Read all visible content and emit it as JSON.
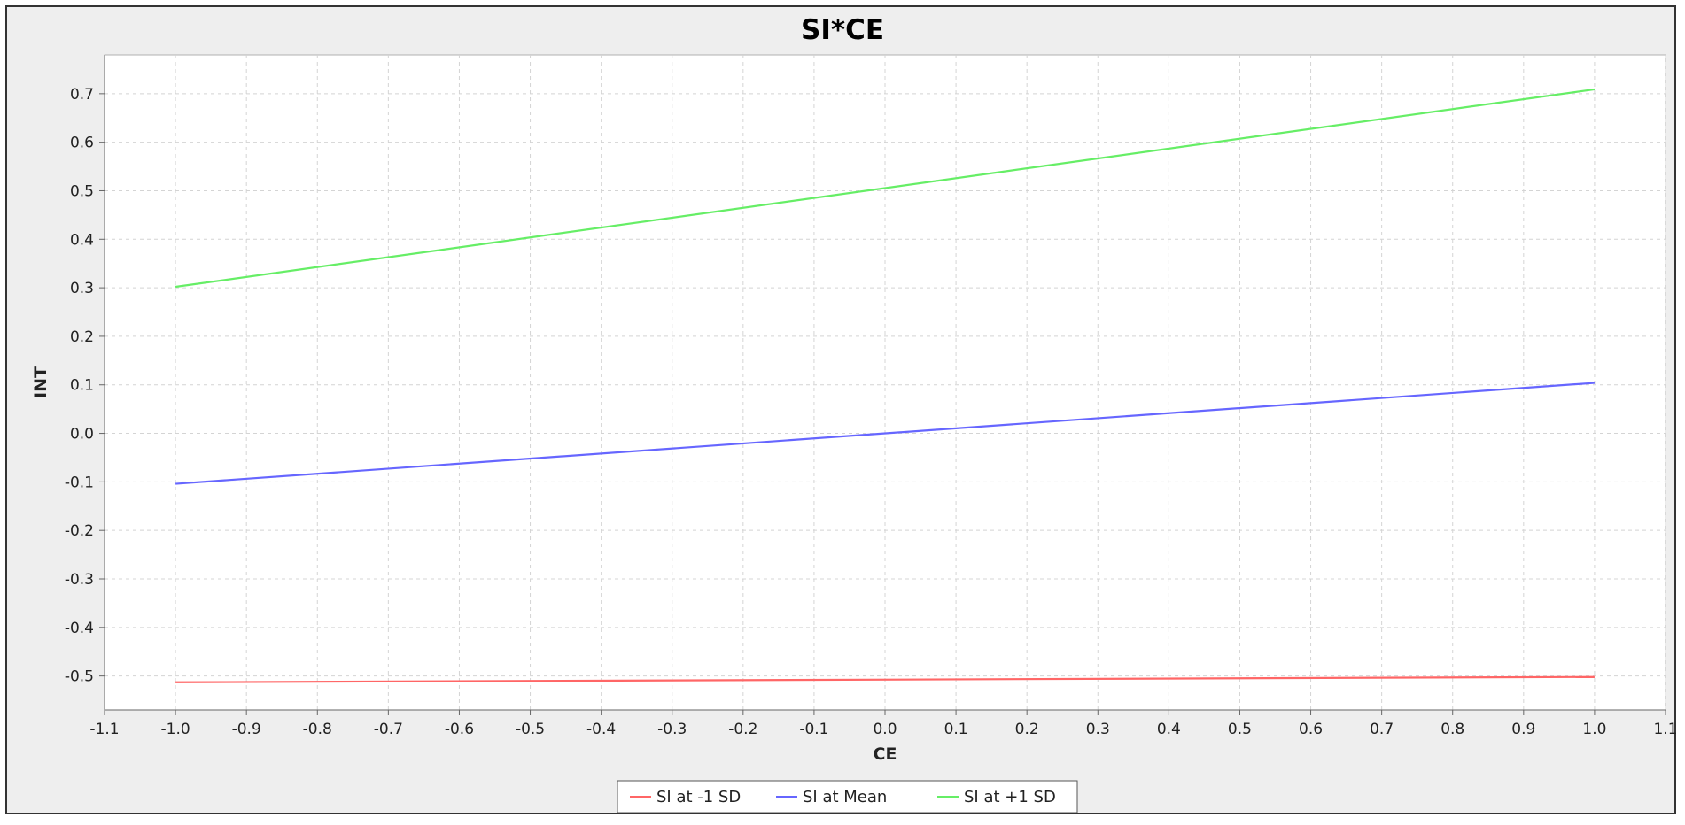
{
  "chart_data": {
    "type": "line",
    "title": "SI*CE",
    "xlabel": "CE",
    "ylabel": "INT",
    "xlim": [
      -1.1,
      1.1
    ],
    "ylim": [
      -0.57,
      0.78
    ],
    "xticks": [
      -1.1,
      -1.0,
      -0.9,
      -0.8,
      -0.7,
      -0.6,
      -0.5,
      -0.4,
      -0.3,
      -0.2,
      -0.1,
      0.0,
      0.1,
      0.2,
      0.3,
      0.4,
      0.5,
      0.6,
      0.7,
      0.8,
      0.9,
      1.0,
      1.1
    ],
    "yticks": [
      -0.5,
      -0.4,
      -0.3,
      -0.2,
      -0.1,
      0.0,
      0.1,
      0.2,
      0.3,
      0.4,
      0.5,
      0.6,
      0.7
    ],
    "grid": true,
    "legend_position": "bottom-center",
    "series": [
      {
        "name": "SI at -1 SD",
        "color": "#ff6666",
        "x": [
          -1.0,
          1.0
        ],
        "y": [
          -0.513,
          -0.502
        ]
      },
      {
        "name": "SI at Mean",
        "color": "#6666ff",
        "x": [
          -1.0,
          1.0
        ],
        "y": [
          -0.104,
          0.104
        ]
      },
      {
        "name": "SI at +1 SD",
        "color": "#66ee66",
        "x": [
          -1.0,
          1.0
        ],
        "y": [
          0.302,
          0.709
        ]
      }
    ]
  }
}
